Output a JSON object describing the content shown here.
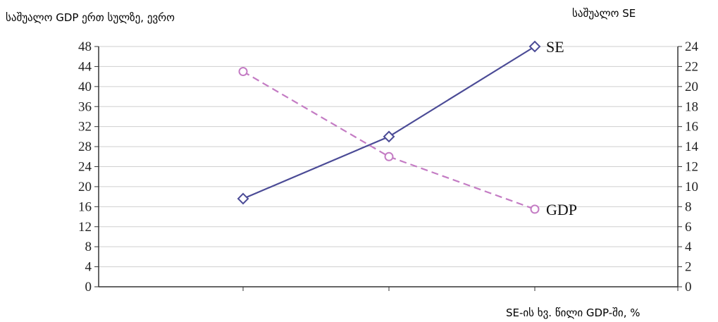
{
  "chart_data": {
    "type": "line",
    "ylabel_left": "საშუალო GDP ერთ სულზე, ევრო",
    "ylabel_right": "საშუალო SE",
    "xlabel": "SE-ის ხვ. წილი GDP-ში, %",
    "left_axis": {
      "range": [
        0,
        48
      ],
      "ticks": [
        "0",
        "4",
        "8",
        "12",
        "16",
        "20",
        "24",
        "28",
        "32",
        "36",
        "40",
        "44",
        "48"
      ]
    },
    "right_axis": {
      "range": [
        0,
        24
      ],
      "ticks": [
        "0",
        "2",
        "4",
        "6",
        "8",
        "10",
        "12",
        "14",
        "16",
        "18",
        "20",
        "22",
        "24"
      ]
    },
    "x_points": 3,
    "grid": true,
    "series": [
      {
        "name": "SE",
        "axis": "right",
        "marker": "diamond",
        "style": "solid",
        "color": "#4b4b96",
        "values": [
          8.8,
          15,
          24
        ]
      },
      {
        "name": "GDP",
        "axis": "left",
        "marker": "circle",
        "style": "dashed",
        "color": "#c47cc4",
        "values": [
          43,
          26,
          15.5
        ]
      }
    ]
  }
}
